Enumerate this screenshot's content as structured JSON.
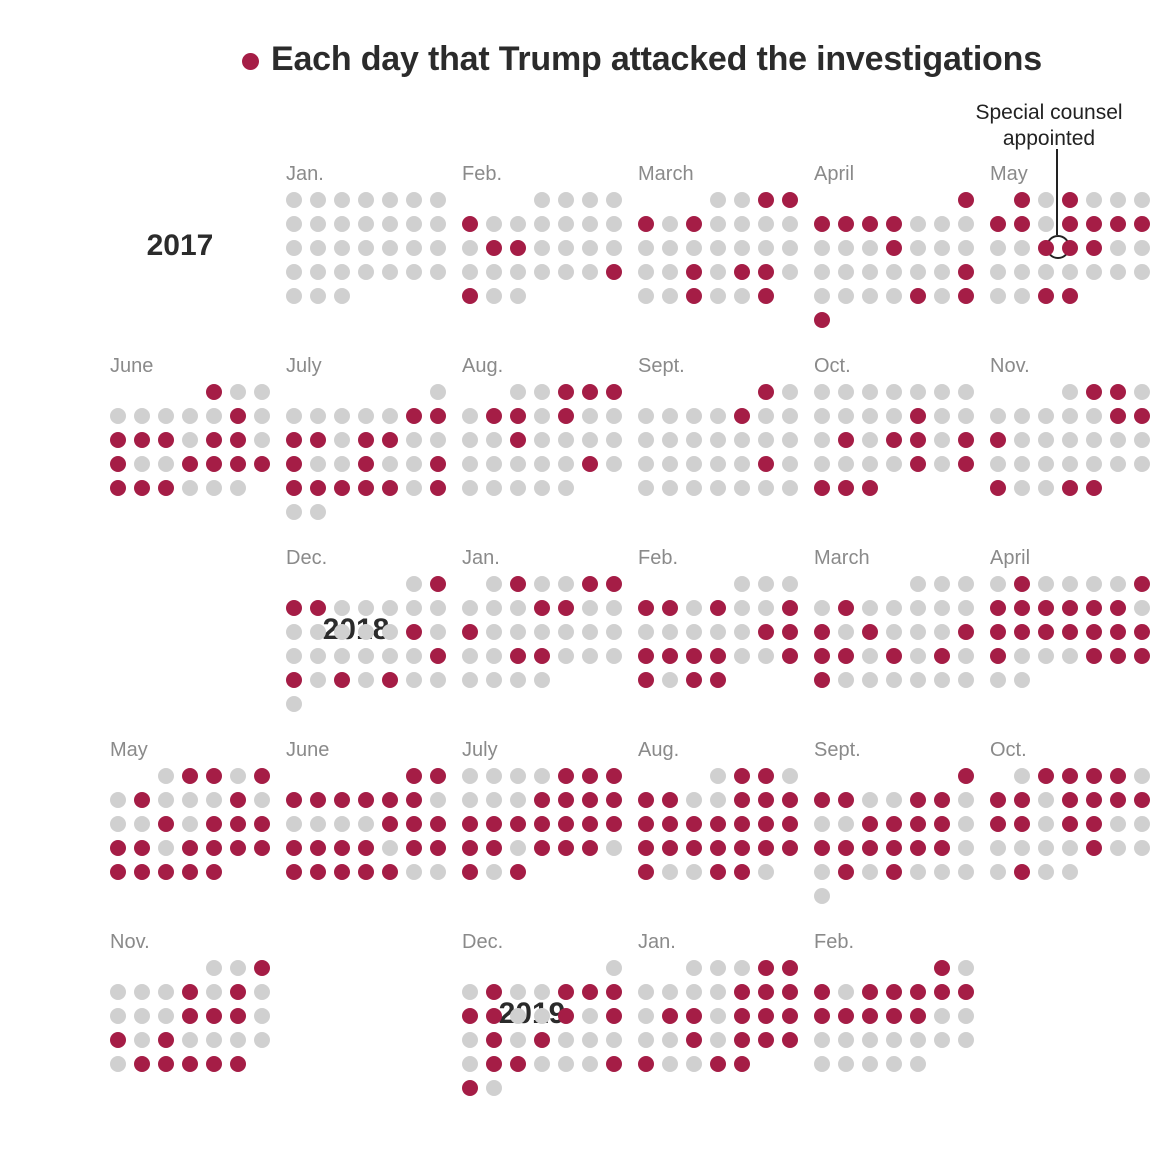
{
  "legend": {
    "label": "Each day that Trump attacked the investigations",
    "color": "#a51d46"
  },
  "colors": {
    "attack": "#a51d46",
    "no_attack": "#d0d0d0"
  },
  "annotation": {
    "text": "Special counsel appointed",
    "date": "2017-05-17"
  },
  "years": [
    "2017",
    "2018",
    "2019"
  ],
  "chart_data": {
    "type": "calendar-dot-grid",
    "title": "Each day that Trump attacked the investigations",
    "week_start": "Sunday",
    "legend": "top",
    "months": [
      {
        "label": "Jan.",
        "year": 2017,
        "month": 1,
        "days": 31,
        "attack_days": []
      },
      {
        "label": "Feb.",
        "year": 2017,
        "month": 2,
        "days": 28,
        "attack_days": [
          5,
          13,
          14,
          25,
          26
        ]
      },
      {
        "label": "March",
        "year": 2017,
        "month": 3,
        "days": 31,
        "attack_days": [
          3,
          4,
          5,
          7,
          21,
          23,
          24,
          28,
          31
        ]
      },
      {
        "label": "April",
        "year": 2017,
        "month": 4,
        "days": 30,
        "attack_days": [
          1,
          2,
          3,
          4,
          5,
          12,
          22,
          27,
          29,
          30
        ]
      },
      {
        "label": "May",
        "year": 2017,
        "month": 5,
        "days": 31,
        "attack_days": [
          1,
          3,
          7,
          8,
          10,
          11,
          12,
          13,
          16,
          17,
          18,
          30,
          31
        ]
      },
      {
        "label": "June",
        "year": 2017,
        "month": 6,
        "days": 30,
        "attack_days": [
          1,
          9,
          11,
          12,
          13,
          15,
          16,
          18,
          21,
          22,
          23,
          24,
          25,
          26,
          27
        ]
      },
      {
        "label": "July",
        "year": 2017,
        "month": 7,
        "days": 31,
        "attack_days": [
          7,
          8,
          9,
          10,
          12,
          13,
          16,
          19,
          22,
          23,
          24,
          25,
          26,
          27,
          29
        ]
      },
      {
        "label": "Aug.",
        "year": 2017,
        "month": 8,
        "days": 31,
        "attack_days": [
          3,
          4,
          5,
          7,
          8,
          10,
          15,
          25
        ]
      },
      {
        "label": "Sept.",
        "year": 2017,
        "month": 9,
        "days": 30,
        "attack_days": [
          1,
          7,
          22
        ]
      },
      {
        "label": "Oct.",
        "year": 2017,
        "month": 10,
        "days": 31,
        "attack_days": [
          12,
          16,
          18,
          19,
          21,
          26,
          28,
          29,
          30,
          31
        ]
      },
      {
        "label": "Nov.",
        "year": 2017,
        "month": 11,
        "days": 30,
        "attack_days": [
          2,
          3,
          10,
          11,
          12,
          26,
          29,
          30
        ]
      },
      {
        "label": "Dec.",
        "year": 2017,
        "month": 12,
        "days": 31,
        "attack_days": [
          2,
          3,
          4,
          15,
          23,
          24,
          26,
          28
        ]
      },
      {
        "label": "Jan.",
        "year": 2018,
        "month": 1,
        "days": 31,
        "attack_days": [
          2,
          5,
          6,
          10,
          11,
          14,
          23,
          24
        ]
      },
      {
        "label": "Feb.",
        "year": 2018,
        "month": 2,
        "days": 28,
        "attack_days": [
          4,
          5,
          7,
          10,
          16,
          17,
          18,
          19,
          20,
          21,
          24,
          25,
          27,
          28
        ]
      },
      {
        "label": "March",
        "year": 2018,
        "month": 3,
        "days": 31,
        "attack_days": [
          5,
          11,
          13,
          17,
          18,
          19,
          21,
          23,
          25
        ]
      },
      {
        "label": "April",
        "year": 2018,
        "month": 4,
        "days": 30,
        "attack_days": [
          2,
          7,
          8,
          9,
          10,
          11,
          12,
          13,
          15,
          16,
          17,
          18,
          19,
          20,
          21,
          22,
          26,
          27,
          28
        ]
      },
      {
        "label": "May",
        "year": 2018,
        "month": 5,
        "days": 31,
        "attack_days": [
          2,
          3,
          5,
          7,
          11,
          15,
          17,
          18,
          19,
          20,
          21,
          23,
          24,
          25,
          26,
          27,
          28,
          29,
          30,
          31
        ]
      },
      {
        "label": "June",
        "year": 2018,
        "month": 6,
        "days": 30,
        "attack_days": [
          1,
          2,
          3,
          4,
          5,
          6,
          7,
          8,
          14,
          15,
          16,
          17,
          18,
          19,
          20,
          22,
          23,
          24,
          25,
          26,
          27,
          28
        ]
      },
      {
        "label": "July",
        "year": 2018,
        "month": 7,
        "days": 31,
        "attack_days": [
          5,
          6,
          7,
          11,
          12,
          13,
          14,
          15,
          16,
          17,
          18,
          19,
          20,
          21,
          22,
          23,
          25,
          26,
          27,
          29,
          31
        ]
      },
      {
        "label": "Aug.",
        "year": 2018,
        "month": 8,
        "days": 31,
        "attack_days": [
          2,
          3,
          5,
          6,
          9,
          10,
          11,
          12,
          13,
          14,
          15,
          16,
          17,
          18,
          19,
          20,
          21,
          22,
          23,
          24,
          25,
          26,
          29,
          30
        ]
      },
      {
        "label": "Sept.",
        "year": 2018,
        "month": 9,
        "days": 30,
        "attack_days": [
          1,
          2,
          3,
          6,
          7,
          11,
          12,
          13,
          14,
          16,
          17,
          18,
          19,
          20,
          21,
          24,
          26
        ]
      },
      {
        "label": "Oct.",
        "year": 2018,
        "month": 10,
        "days": 31,
        "attack_days": [
          2,
          3,
          4,
          5,
          7,
          8,
          10,
          11,
          12,
          13,
          14,
          15,
          17,
          18,
          25,
          29
        ]
      },
      {
        "label": "Nov.",
        "year": 2018,
        "month": 11,
        "days": 30,
        "attack_days": [
          3,
          7,
          9,
          14,
          15,
          16,
          18,
          20,
          26,
          27,
          28,
          29,
          30
        ]
      },
      {
        "label": "Dec.",
        "year": 2018,
        "month": 12,
        "days": 31,
        "attack_days": [
          3,
          6,
          7,
          8,
          9,
          10,
          13,
          15,
          17,
          19,
          24,
          25,
          29,
          30
        ]
      },
      {
        "label": "Jan.",
        "year": 2019,
        "month": 1,
        "days": 31,
        "attack_days": [
          4,
          5,
          10,
          11,
          12,
          14,
          15,
          17,
          18,
          19,
          22,
          24,
          25,
          26,
          27,
          30,
          31
        ]
      },
      {
        "label": "Feb.",
        "year": 2019,
        "month": 2,
        "days": 28,
        "attack_days": [
          1,
          3,
          5,
          6,
          7,
          8,
          9,
          10,
          11,
          12,
          13,
          14
        ]
      }
    ]
  }
}
